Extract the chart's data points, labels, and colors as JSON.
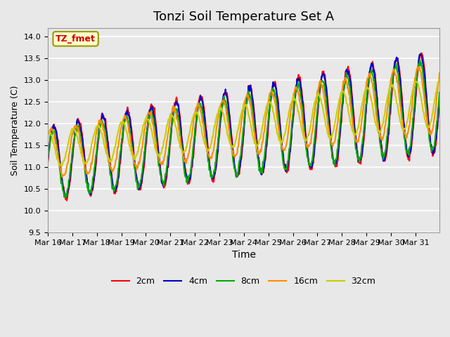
{
  "title": "Tonzi Soil Temperature Set A",
  "xlabel": "Time",
  "ylabel": "Soil Temperature (C)",
  "ylim": [
    9.5,
    14.2
  ],
  "legend_label": "TZ_fmet",
  "series_labels": [
    "2cm",
    "4cm",
    "8cm",
    "16cm",
    "32cm"
  ],
  "series_colors": [
    "#FF0000",
    "#0000CC",
    "#00AA00",
    "#FF8C00",
    "#CCCC00"
  ],
  "background_color": "#E8E8E8",
  "title_fontsize": 13,
  "tick_labels": [
    "Mar 16",
    "Mar 17",
    "Mar 18",
    "Mar 19",
    "Mar 20",
    "Mar 21",
    "Mar 22",
    "Mar 23",
    "Mar 24",
    "Mar 25",
    "Mar 26",
    "Mar 27",
    "Mar 28",
    "Mar 29",
    "Mar 30",
    "Mar 31"
  ],
  "n_days": 16,
  "pts_per_day": 48
}
